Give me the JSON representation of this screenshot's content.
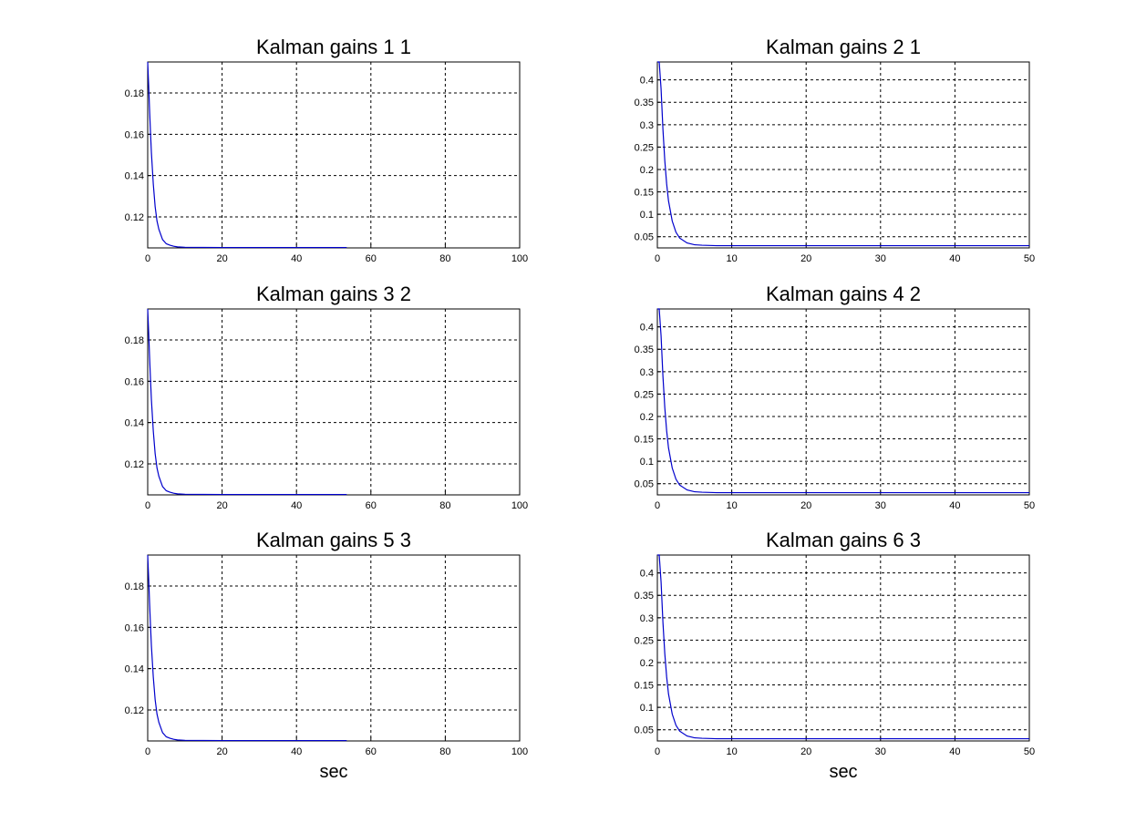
{
  "figure": {
    "background": "#ffffff",
    "line_color": "#0000cc",
    "grid_color": "#000000"
  },
  "chart_data": [
    {
      "type": "line",
      "title": "Kalman gains 1 1",
      "xlabel": "",
      "ylabel": "",
      "xlim": [
        0,
        100
      ],
      "ylim": [
        0.105,
        0.195
      ],
      "xticks": [
        0,
        20,
        40,
        60,
        80,
        100
      ],
      "xtick_labels": [
        "0",
        "20",
        "40",
        "60",
        "80",
        "100"
      ],
      "yticks": [
        0.12,
        0.14,
        0.16,
        0.18
      ],
      "ytick_labels": [
        "0.12",
        "0.14",
        "0.16",
        "0.18"
      ],
      "grid": true,
      "series": [
        {
          "color": "#0000cc",
          "x": [
            0,
            0.25,
            0.5,
            0.75,
            1,
            1.5,
            2,
            2.5,
            3,
            4,
            5,
            6,
            7,
            8,
            10,
            20,
            30,
            40,
            50,
            53.5
          ],
          "y": [
            0.195,
            0.184,
            0.172,
            0.161,
            0.151,
            0.136,
            0.125,
            0.118,
            0.114,
            0.109,
            0.107,
            0.1063,
            0.1058,
            0.1055,
            0.1053,
            0.1052,
            0.1052,
            0.1052,
            0.1052,
            0.1052
          ]
        }
      ]
    },
    {
      "type": "line",
      "title": "Kalman gains 2 1",
      "xlabel": "",
      "ylabel": "",
      "xlim": [
        0,
        50
      ],
      "ylim": [
        0.025,
        0.44
      ],
      "xticks": [
        0,
        10,
        20,
        30,
        40,
        50
      ],
      "xtick_labels": [
        "0",
        "10",
        "20",
        "30",
        "40",
        "50"
      ],
      "yticks": [
        0.05,
        0.1,
        0.15,
        0.2,
        0.25,
        0.3,
        0.35,
        0.4
      ],
      "ytick_labels": [
        "0.05",
        "0.1",
        "0.15",
        "0.2",
        "0.25",
        "0.3",
        "0.35",
        "0.4"
      ],
      "grid": true,
      "series": [
        {
          "color": "#0000cc",
          "x": [
            0,
            0.25,
            0.5,
            0.75,
            1,
            1.25,
            1.5,
            2,
            2.5,
            3,
            4,
            5,
            6,
            8,
            10,
            20,
            30,
            40,
            50
          ],
          "y": [
            0.44,
            0.44,
            0.38,
            0.29,
            0.22,
            0.168,
            0.13,
            0.085,
            0.06,
            0.047,
            0.036,
            0.032,
            0.031,
            0.03,
            0.03,
            0.03,
            0.03,
            0.03,
            0.03
          ]
        }
      ]
    },
    {
      "type": "line",
      "title": "Kalman gains 3 2",
      "xlabel": "",
      "ylabel": "",
      "xlim": [
        0,
        100
      ],
      "ylim": [
        0.105,
        0.195
      ],
      "xticks": [
        0,
        20,
        40,
        60,
        80,
        100
      ],
      "xtick_labels": [
        "0",
        "20",
        "40",
        "60",
        "80",
        "100"
      ],
      "yticks": [
        0.12,
        0.14,
        0.16,
        0.18
      ],
      "ytick_labels": [
        "0.12",
        "0.14",
        "0.16",
        "0.18"
      ],
      "grid": true,
      "series": [
        {
          "color": "#0000cc",
          "x": [
            0,
            0.25,
            0.5,
            0.75,
            1,
            1.5,
            2,
            2.5,
            3,
            4,
            5,
            6,
            7,
            8,
            10,
            20,
            30,
            40,
            50,
            53.5
          ],
          "y": [
            0.195,
            0.184,
            0.172,
            0.161,
            0.151,
            0.136,
            0.125,
            0.118,
            0.114,
            0.109,
            0.107,
            0.1063,
            0.1058,
            0.1055,
            0.1053,
            0.1052,
            0.1052,
            0.1052,
            0.1052,
            0.1052
          ]
        }
      ]
    },
    {
      "type": "line",
      "title": "Kalman gains 4 2",
      "xlabel": "",
      "ylabel": "",
      "xlim": [
        0,
        50
      ],
      "ylim": [
        0.025,
        0.44
      ],
      "xticks": [
        0,
        10,
        20,
        30,
        40,
        50
      ],
      "xtick_labels": [
        "0",
        "10",
        "20",
        "30",
        "40",
        "50"
      ],
      "yticks": [
        0.05,
        0.1,
        0.15,
        0.2,
        0.25,
        0.3,
        0.35,
        0.4
      ],
      "ytick_labels": [
        "0.05",
        "0.1",
        "0.15",
        "0.2",
        "0.25",
        "0.3",
        "0.35",
        "0.4"
      ],
      "grid": true,
      "series": [
        {
          "color": "#0000cc",
          "x": [
            0,
            0.25,
            0.5,
            0.75,
            1,
            1.25,
            1.5,
            2,
            2.5,
            3,
            4,
            5,
            6,
            8,
            10,
            20,
            30,
            40,
            50
          ],
          "y": [
            0.44,
            0.44,
            0.38,
            0.29,
            0.22,
            0.168,
            0.13,
            0.085,
            0.06,
            0.047,
            0.036,
            0.032,
            0.031,
            0.03,
            0.03,
            0.03,
            0.03,
            0.03,
            0.03
          ]
        }
      ]
    },
    {
      "type": "line",
      "title": "Kalman gains 5 3",
      "xlabel": "sec",
      "ylabel": "",
      "xlim": [
        0,
        100
      ],
      "ylim": [
        0.105,
        0.195
      ],
      "xticks": [
        0,
        20,
        40,
        60,
        80,
        100
      ],
      "xtick_labels": [
        "0",
        "20",
        "40",
        "60",
        "80",
        "100"
      ],
      "yticks": [
        0.12,
        0.14,
        0.16,
        0.18
      ],
      "ytick_labels": [
        "0.12",
        "0.14",
        "0.16",
        "0.18"
      ],
      "grid": true,
      "series": [
        {
          "color": "#0000cc",
          "x": [
            0,
            0.25,
            0.5,
            0.75,
            1,
            1.5,
            2,
            2.5,
            3,
            4,
            5,
            6,
            7,
            8,
            10,
            20,
            30,
            40,
            50,
            53.5
          ],
          "y": [
            0.195,
            0.184,
            0.172,
            0.161,
            0.151,
            0.136,
            0.125,
            0.118,
            0.114,
            0.109,
            0.107,
            0.1063,
            0.1058,
            0.1055,
            0.1053,
            0.1052,
            0.1052,
            0.1052,
            0.1052,
            0.1052
          ]
        }
      ]
    },
    {
      "type": "line",
      "title": "Kalman gains 6 3",
      "xlabel": "sec",
      "ylabel": "",
      "xlim": [
        0,
        50
      ],
      "ylim": [
        0.025,
        0.44
      ],
      "xticks": [
        0,
        10,
        20,
        30,
        40,
        50
      ],
      "xtick_labels": [
        "0",
        "10",
        "20",
        "30",
        "40",
        "50"
      ],
      "yticks": [
        0.05,
        0.1,
        0.15,
        0.2,
        0.25,
        0.3,
        0.35,
        0.4
      ],
      "ytick_labels": [
        "0.05",
        "0.1",
        "0.15",
        "0.2",
        "0.25",
        "0.3",
        "0.35",
        "0.4"
      ],
      "grid": true,
      "series": [
        {
          "color": "#0000cc",
          "x": [
            0,
            0.25,
            0.5,
            0.75,
            1,
            1.25,
            1.5,
            2,
            2.5,
            3,
            4,
            5,
            6,
            8,
            10,
            20,
            30,
            40,
            50
          ],
          "y": [
            0.44,
            0.44,
            0.38,
            0.29,
            0.22,
            0.168,
            0.13,
            0.085,
            0.06,
            0.047,
            0.036,
            0.032,
            0.031,
            0.03,
            0.03,
            0.03,
            0.03,
            0.03,
            0.03
          ]
        }
      ]
    }
  ]
}
